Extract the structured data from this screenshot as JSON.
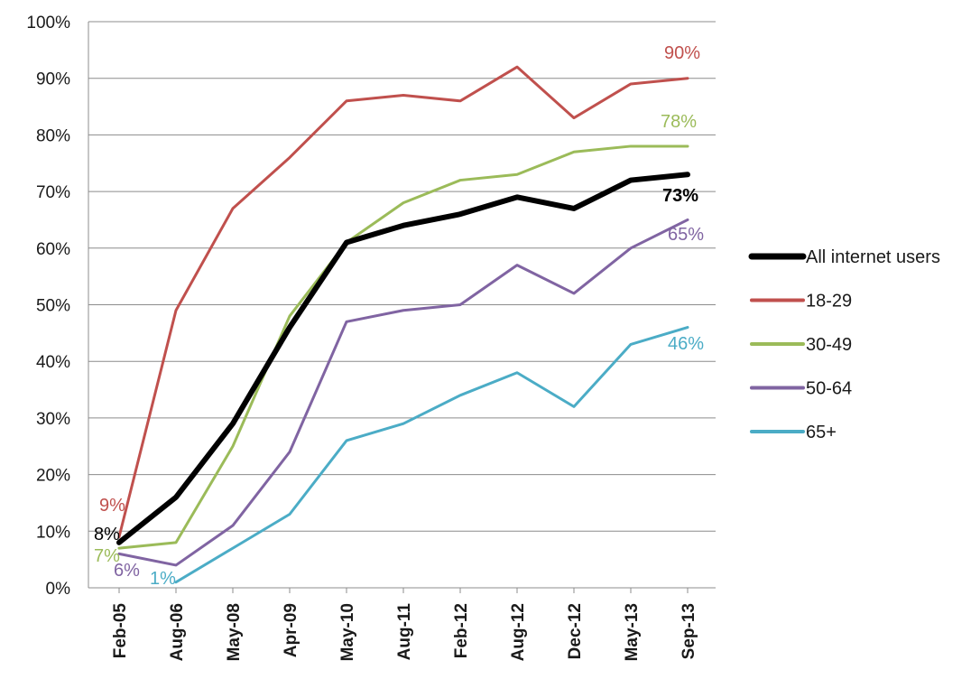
{
  "chart_data": {
    "type": "line",
    "ylim": [
      0,
      100
    ],
    "y_ticks": [
      "0%",
      "10%",
      "20%",
      "30%",
      "40%",
      "50%",
      "60%",
      "70%",
      "80%",
      "90%",
      "100%"
    ],
    "categories": [
      "Feb-05",
      "Aug-06",
      "May-08",
      "Apr-09",
      "May-10",
      "Aug-11",
      "Feb-12",
      "Aug-12",
      "Dec-12",
      "May-13",
      "Sep-13"
    ],
    "grid": true,
    "legend_position": "right",
    "series": [
      {
        "name": "All internet users",
        "color": "#000000",
        "width": 6,
        "values": [
          8,
          16,
          29,
          46,
          61,
          64,
          66,
          69,
          67,
          72,
          73
        ],
        "start_label": "8%",
        "end_label": "73%"
      },
      {
        "name": "18-29",
        "color": "#c0504d",
        "width": 3,
        "values": [
          9,
          49,
          67,
          76,
          86,
          87,
          86,
          92,
          83,
          89,
          90
        ],
        "start_label": "9%",
        "end_label": "90%"
      },
      {
        "name": "30-49",
        "color": "#9bbb59",
        "width": 3,
        "values": [
          7,
          8,
          25,
          48,
          61,
          68,
          72,
          73,
          77,
          78,
          78
        ],
        "start_label": "7%",
        "end_label": "78%"
      },
      {
        "name": "50-64",
        "color": "#8064a2",
        "width": 3,
        "values": [
          6,
          4,
          11,
          24,
          47,
          49,
          50,
          57,
          52,
          60,
          65
        ],
        "start_label": "6%",
        "end_label": "65%"
      },
      {
        "name": "65+",
        "color": "#4bacc6",
        "width": 3,
        "values": [
          null,
          1,
          7,
          13,
          26,
          29,
          34,
          38,
          32,
          43,
          46
        ],
        "start_label": "1%",
        "end_label": "46%"
      }
    ]
  }
}
